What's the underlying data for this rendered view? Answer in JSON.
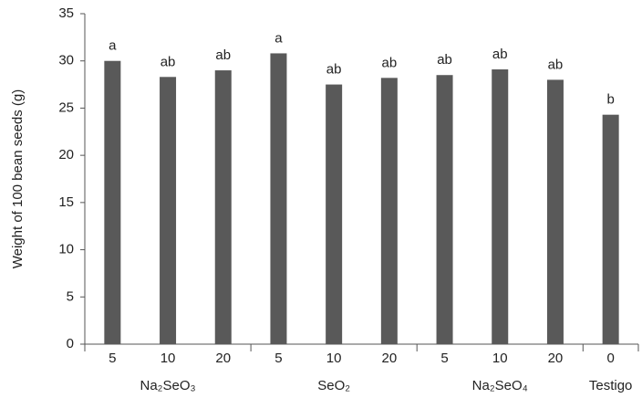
{
  "chart_data": {
    "type": "bar",
    "y_label": "Weight  of 100 bean seeds (g)",
    "color": "#595959",
    "ylim": [
      0,
      35
    ],
    "yticks": [
      0,
      5,
      10,
      15,
      20,
      25,
      30,
      35
    ],
    "groups": [
      {
        "label": "Na₂SeO₃",
        "categories": [
          "5",
          "10",
          "20"
        ],
        "values": [
          30.0,
          28.3,
          29.0
        ],
        "letters": [
          "a",
          "ab",
          "ab"
        ]
      },
      {
        "label": "SeO₂",
        "categories": [
          "5",
          "10",
          "20"
        ],
        "values": [
          30.8,
          27.5,
          28.2
        ],
        "letters": [
          "a",
          "ab",
          "ab"
        ]
      },
      {
        "label": "Na₂SeO₄",
        "categories": [
          "5",
          "10",
          "20"
        ],
        "values": [
          28.5,
          29.1,
          28.0
        ],
        "letters": [
          "ab",
          "ab",
          "ab"
        ]
      },
      {
        "label": "Testigo",
        "categories": [
          "0"
        ],
        "values": [
          24.3
        ],
        "letters": [
          "b"
        ]
      }
    ]
  }
}
